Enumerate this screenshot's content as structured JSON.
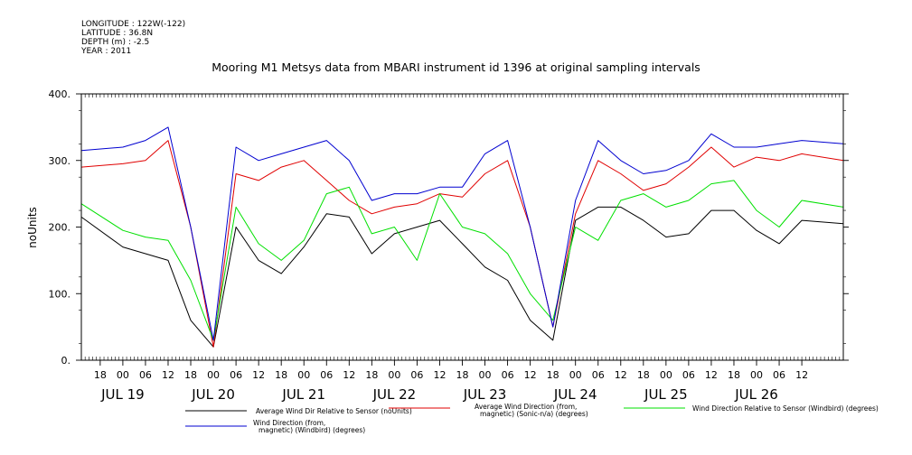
{
  "header": {
    "lines": [
      "LONGITUDE : 122W(-122)",
      "LATITUDE : 36.8N",
      "DEPTH (m) : -2.5",
      "YEAR : 2011"
    ],
    "title": "Mooring M1 Metsys data from MBARI instrument id 1396 at original sampling intervals"
  },
  "chart_data": {
    "type": "line",
    "title": "Mooring M1 Metsys data from MBARI instrument id 1396 at original sampling intervals",
    "xlabel": "",
    "ylabel": "noUnits",
    "xlim": [
      "2011-07-18T13:00",
      "2011-07-26T23:00"
    ],
    "ylim": [
      0,
      400
    ],
    "y_ticks": [
      0,
      100,
      200,
      300,
      400
    ],
    "hour_tick_labels": [
      "18",
      "00",
      "06",
      "12",
      "18",
      "00",
      "06",
      "12",
      "18",
      "00",
      "06",
      "12",
      "18",
      "00",
      "06",
      "12",
      "18",
      "00",
      "06",
      "12",
      "18",
      "00",
      "06",
      "12",
      "18",
      "00",
      "06",
      "12",
      "18",
      "00",
      "06",
      "12"
    ],
    "day_labels": [
      "JUL 19",
      "JUL 20",
      "JUL 21",
      "JUL 22",
      "JUL 23",
      "JUL 24",
      "JUL 25",
      "JUL 26"
    ],
    "grid": false,
    "legend_position": "bottom",
    "series": [
      {
        "name": "Average Wind Dir Relative to Sensor (noUnits)",
        "color": "#000000",
        "x": [
          "2011-07-18T13:00",
          "2011-07-19T00:00",
          "2011-07-19T06:00",
          "2011-07-19T12:00",
          "2011-07-19T18:00",
          "2011-07-20T00:00",
          "2011-07-20T06:00",
          "2011-07-20T12:00",
          "2011-07-20T18:00",
          "2011-07-21T00:00",
          "2011-07-21T06:00",
          "2011-07-21T12:00",
          "2011-07-21T18:00",
          "2011-07-22T00:00",
          "2011-07-22T06:00",
          "2011-07-22T12:00",
          "2011-07-22T18:00",
          "2011-07-23T00:00",
          "2011-07-23T06:00",
          "2011-07-23T12:00",
          "2011-07-23T18:00",
          "2011-07-24T00:00",
          "2011-07-24T06:00",
          "2011-07-24T12:00",
          "2011-07-24T18:00",
          "2011-07-25T00:00",
          "2011-07-25T06:00",
          "2011-07-25T12:00",
          "2011-07-25T18:00",
          "2011-07-26T00:00",
          "2011-07-26T06:00",
          "2011-07-26T12:00",
          "2011-07-26T23:00"
        ],
        "values": [
          215,
          170,
          160,
          150,
          60,
          20,
          200,
          150,
          130,
          170,
          220,
          215,
          160,
          190,
          200,
          210,
          175,
          140,
          120,
          60,
          30,
          210,
          230,
          230,
          210,
          185,
          190,
          225,
          225,
          195,
          175,
          210,
          205
        ]
      },
      {
        "name": "Average Wind Direction (from, magnetic) (Sonic-n/a) (degrees)",
        "color": "#e00000",
        "x": [
          "2011-07-18T13:00",
          "2011-07-19T00:00",
          "2011-07-19T06:00",
          "2011-07-19T12:00",
          "2011-07-19T18:00",
          "2011-07-20T00:00",
          "2011-07-20T06:00",
          "2011-07-20T12:00",
          "2011-07-20T18:00",
          "2011-07-21T00:00",
          "2011-07-21T06:00",
          "2011-07-21T12:00",
          "2011-07-21T18:00",
          "2011-07-22T00:00",
          "2011-07-22T06:00",
          "2011-07-22T12:00",
          "2011-07-22T18:00",
          "2011-07-23T00:00",
          "2011-07-23T06:00",
          "2011-07-23T12:00",
          "2011-07-23T18:00",
          "2011-07-24T00:00",
          "2011-07-24T06:00",
          "2011-07-24T12:00",
          "2011-07-24T18:00",
          "2011-07-25T00:00",
          "2011-07-25T06:00",
          "2011-07-25T12:00",
          "2011-07-25T18:00",
          "2011-07-26T00:00",
          "2011-07-26T06:00",
          "2011-07-26T12:00",
          "2011-07-26T23:00"
        ],
        "values": [
          290,
          295,
          300,
          330,
          200,
          20,
          280,
          270,
          290,
          300,
          270,
          240,
          220,
          230,
          235,
          250,
          245,
          280,
          300,
          200,
          50,
          220,
          300,
          280,
          255,
          265,
          290,
          320,
          290,
          305,
          300,
          310,
          300
        ]
      },
      {
        "name": "Wind Direction Relative to Sensor (Windbird) (degrees)",
        "color": "#00e000",
        "x": [
          "2011-07-18T13:00",
          "2011-07-19T00:00",
          "2011-07-19T06:00",
          "2011-07-19T12:00",
          "2011-07-19T18:00",
          "2011-07-20T00:00",
          "2011-07-20T06:00",
          "2011-07-20T12:00",
          "2011-07-20T18:00",
          "2011-07-21T00:00",
          "2011-07-21T06:00",
          "2011-07-21T12:00",
          "2011-07-21T18:00",
          "2011-07-22T00:00",
          "2011-07-22T06:00",
          "2011-07-22T12:00",
          "2011-07-22T18:00",
          "2011-07-23T00:00",
          "2011-07-23T06:00",
          "2011-07-23T12:00",
          "2011-07-23T18:00",
          "2011-07-24T00:00",
          "2011-07-24T06:00",
          "2011-07-24T12:00",
          "2011-07-24T18:00",
          "2011-07-25T00:00",
          "2011-07-25T06:00",
          "2011-07-25T12:00",
          "2011-07-25T18:00",
          "2011-07-26T00:00",
          "2011-07-26T06:00",
          "2011-07-26T12:00",
          "2011-07-26T23:00"
        ],
        "values": [
          235,
          195,
          185,
          180,
          120,
          30,
          230,
          175,
          150,
          180,
          250,
          260,
          190,
          200,
          150,
          250,
          200,
          190,
          160,
          100,
          60,
          200,
          180,
          240,
          250,
          230,
          240,
          265,
          270,
          225,
          200,
          240,
          230
        ]
      },
      {
        "name": "Wind Direction (from, magnetic) (Windbird) (degrees)",
        "color": "#0000d0",
        "x": [
          "2011-07-18T13:00",
          "2011-07-19T00:00",
          "2011-07-19T06:00",
          "2011-07-19T12:00",
          "2011-07-19T18:00",
          "2011-07-20T00:00",
          "2011-07-20T06:00",
          "2011-07-20T12:00",
          "2011-07-20T18:00",
          "2011-07-21T00:00",
          "2011-07-21T06:00",
          "2011-07-21T12:00",
          "2011-07-21T18:00",
          "2011-07-22T00:00",
          "2011-07-22T06:00",
          "2011-07-22T12:00",
          "2011-07-22T18:00",
          "2011-07-23T00:00",
          "2011-07-23T06:00",
          "2011-07-23T12:00",
          "2011-07-23T18:00",
          "2011-07-24T00:00",
          "2011-07-24T06:00",
          "2011-07-24T12:00",
          "2011-07-24T18:00",
          "2011-07-25T00:00",
          "2011-07-25T06:00",
          "2011-07-25T12:00",
          "2011-07-25T18:00",
          "2011-07-26T00:00",
          "2011-07-26T06:00",
          "2011-07-26T12:00",
          "2011-07-26T23:00"
        ],
        "values": [
          315,
          320,
          330,
          350,
          200,
          30,
          320,
          300,
          310,
          320,
          330,
          300,
          240,
          250,
          250,
          260,
          260,
          310,
          330,
          200,
          50,
          240,
          330,
          300,
          280,
          285,
          300,
          340,
          320,
          320,
          325,
          330,
          325
        ]
      }
    ]
  }
}
